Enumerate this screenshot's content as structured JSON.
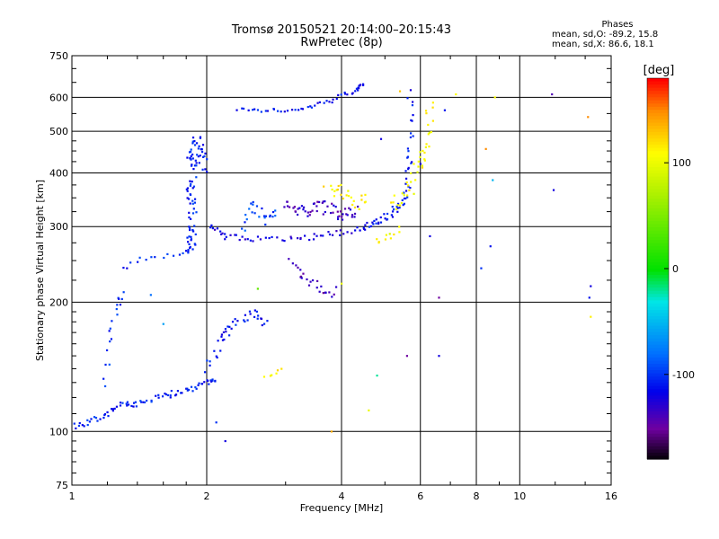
{
  "header": {
    "title": "Tromsø 20150521 20:14:00–20:15:43",
    "subtitle": "RwPretec (8p)"
  },
  "phase_stats": {
    "heading": "Phases",
    "line_o": "mean, sd,O: -89.2, 15.8",
    "line_x": "mean, sd,X:  86.6, 18.1"
  },
  "colorbar": {
    "unit_label": "[deg]",
    "ticks": [
      "100",
      "0",
      "-100"
    ],
    "tick_values": [
      100,
      0,
      -100
    ],
    "range": [
      -180,
      180
    ]
  },
  "chart_data": {
    "type": "scatter",
    "title": "Tromsø 20150521 20:14:00–20:15:43",
    "subtitle": "RwPretec (8p)",
    "xlabel": "Frequency [MHz]",
    "ylabel": "Stationary phase Virtual Height [km]",
    "xscale": "log",
    "yscale": "log",
    "xlim": [
      1,
      16
    ],
    "ylim": [
      75,
      750
    ],
    "xticks": [
      "1",
      "2",
      "4",
      "6",
      "8",
      "10",
      "16"
    ],
    "xtick_values": [
      1,
      2,
      4,
      6,
      8,
      10,
      16
    ],
    "yticks": [
      "750",
      "600",
      "500",
      "400",
      "300",
      "200",
      "100",
      "75"
    ],
    "ytick_values": [
      750,
      600,
      500,
      400,
      300,
      200,
      100,
      75
    ],
    "grid": true,
    "color_by": "phase (deg)",
    "segments": [
      {
        "points": [
          [
            1.0,
            103
          ],
          [
            1.1,
            105
          ],
          [
            1.2,
            110
          ],
          [
            1.3,
            116
          ],
          [
            1.4,
            116
          ],
          [
            1.55,
            120
          ],
          [
            1.7,
            123
          ],
          [
            1.85,
            125
          ],
          [
            2.0,
            130
          ],
          [
            2.1,
            133
          ]
        ],
        "phase": -105,
        "spread": 0.02,
        "density": 9
      },
      {
        "points": [
          [
            1.18,
            130
          ],
          [
            1.22,
            165
          ],
          [
            1.27,
            200
          ],
          [
            1.3,
            210
          ]
        ],
        "phase": -100,
        "spread": 0.03,
        "density": 6
      },
      {
        "points": [
          [
            1.3,
            240
          ],
          [
            1.45,
            255
          ],
          [
            1.7,
            258
          ],
          [
            1.85,
            262
          ]
        ],
        "phase": -105,
        "spread": 0.02,
        "density": 5
      },
      {
        "points": [
          [
            1.85,
            260
          ],
          [
            1.85,
            300
          ],
          [
            1.85,
            360
          ],
          [
            1.85,
            430
          ],
          [
            1.9,
            470
          ],
          [
            1.98,
            400
          ]
        ],
        "phase": -105,
        "spread": 0.05,
        "density": 18
      },
      {
        "points": [
          [
            2.0,
            140
          ],
          [
            2.15,
            165
          ],
          [
            2.3,
            180
          ],
          [
            2.55,
            190
          ],
          [
            2.7,
            180
          ]
        ],
        "phase": -110,
        "spread": 0.04,
        "density": 10
      },
      {
        "points": [
          [
            2.05,
            300
          ],
          [
            2.2,
            285
          ],
          [
            2.5,
            280
          ],
          [
            3.0,
            280
          ],
          [
            3.5,
            285
          ],
          [
            4.0,
            290
          ],
          [
            4.6,
            300
          ]
        ],
        "phase": -120,
        "spread": 0.02,
        "density": 9
      },
      {
        "points": [
          [
            2.4,
            300
          ],
          [
            2.55,
            340
          ],
          [
            2.7,
            310
          ],
          [
            2.9,
            330
          ]
        ],
        "phase": -95,
        "spread": 0.04,
        "density": 8
      },
      {
        "points": [
          [
            3.0,
            340
          ],
          [
            3.3,
            325
          ],
          [
            3.6,
            335
          ],
          [
            4.0,
            320
          ],
          [
            4.3,
            325
          ]
        ],
        "phase": -135,
        "spread": 0.04,
        "density": 14
      },
      {
        "points": [
          [
            3.1,
            250
          ],
          [
            3.3,
            225
          ],
          [
            3.6,
            215
          ],
          [
            3.9,
            210
          ]
        ],
        "phase": -140,
        "spread": 0.04,
        "density": 8
      },
      {
        "points": [
          [
            2.35,
            560
          ],
          [
            2.8,
            560
          ],
          [
            3.3,
            565
          ],
          [
            3.8,
            590
          ],
          [
            4.3,
            625
          ],
          [
            4.5,
            640
          ]
        ],
        "phase": -110,
        "spread": 0.015,
        "density": 10
      },
      {
        "points": [
          [
            4.5,
            300
          ],
          [
            4.9,
            310
          ],
          [
            5.3,
            330
          ],
          [
            5.6,
            360
          ],
          [
            5.7,
            450
          ],
          [
            5.7,
            640
          ]
        ],
        "phase": -110,
        "spread": 0.03,
        "density": 12
      },
      {
        "points": [
          [
            3.7,
            370
          ],
          [
            4.0,
            360
          ],
          [
            4.3,
            340
          ],
          [
            4.6,
            350
          ]
        ],
        "phase": 115,
        "spread": 0.05,
        "density": 8
      },
      {
        "points": [
          [
            5.2,
            330
          ],
          [
            5.6,
            360
          ],
          [
            6.0,
            420
          ],
          [
            6.2,
            470
          ],
          [
            6.3,
            600
          ]
        ],
        "phase": 110,
        "spread": 0.05,
        "density": 10
      },
      {
        "points": [
          [
            4.8,
            280
          ],
          [
            5.1,
            285
          ],
          [
            5.5,
            300
          ]
        ],
        "phase": 105,
        "spread": 0.03,
        "density": 5
      },
      {
        "points": [
          [
            2.7,
            135
          ],
          [
            2.85,
            138
          ],
          [
            2.95,
            140
          ]
        ],
        "phase": 110,
        "spread": 0.02,
        "density": 3
      }
    ],
    "isolated_points": [
      [
        1.5,
        208,
        -80
      ],
      [
        1.6,
        178,
        -60
      ],
      [
        2.1,
        105,
        -100
      ],
      [
        2.2,
        95,
        -120
      ],
      [
        2.6,
        215,
        40
      ],
      [
        3.8,
        100,
        140
      ],
      [
        4.0,
        221,
        100
      ],
      [
        4.6,
        112,
        100
      ],
      [
        4.8,
        135,
        -20
      ],
      [
        4.9,
        480,
        -120
      ],
      [
        5.4,
        620,
        130
      ],
      [
        5.6,
        150,
        -150
      ],
      [
        5.8,
        420,
        110
      ],
      [
        6.0,
        420,
        -120
      ],
      [
        6.3,
        285,
        -120
      ],
      [
        6.6,
        150,
        -120
      ],
      [
        6.6,
        205,
        -150
      ],
      [
        6.8,
        560,
        -110
      ],
      [
        7.2,
        610,
        110
      ],
      [
        8.2,
        240,
        -100
      ],
      [
        8.4,
        455,
        150
      ],
      [
        8.6,
        270,
        -110
      ],
      [
        8.7,
        385,
        -50
      ],
      [
        8.8,
        600,
        110
      ],
      [
        11.8,
        610,
        -140
      ],
      [
        11.9,
        365,
        -120
      ],
      [
        14.2,
        540,
        150
      ],
      [
        14.3,
        205,
        -110
      ],
      [
        14.4,
        218,
        -120
      ],
      [
        14.4,
        185,
        115
      ]
    ]
  }
}
